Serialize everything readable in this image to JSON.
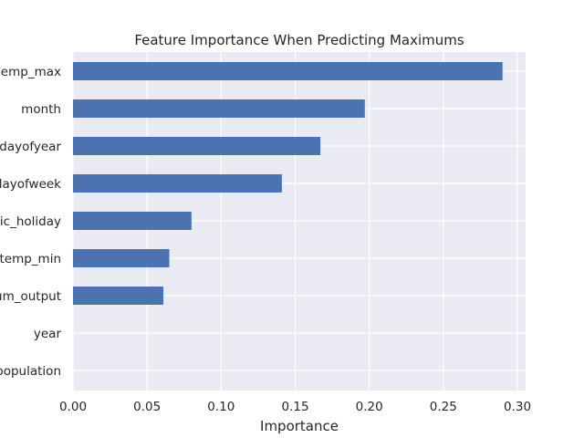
{
  "chart_data": {
    "type": "bar",
    "orientation": "horizontal",
    "title": "Feature Importance When Predicting Maximums",
    "xlabel": "Importance",
    "ylabel": "",
    "xlim": [
      0,
      0.3
    ],
    "xticks": [
      "0.00",
      "0.05",
      "0.10",
      "0.15",
      "0.20",
      "0.25",
      "0.30"
    ],
    "grid": true,
    "categories": [
      "emp_max",
      "month",
      "dayofyear",
      "layofweek",
      "ic_holiday",
      "temp_min",
      "um_output",
      "year",
      "population"
    ],
    "values": [
      0.29,
      0.197,
      0.167,
      0.141,
      0.08,
      0.065,
      0.061,
      0.0,
      0.0
    ],
    "bar_color": "#4c72b0",
    "background_color": "#eaeaf2"
  }
}
